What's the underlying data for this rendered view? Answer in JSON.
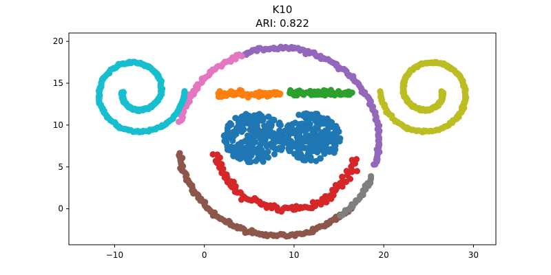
{
  "chart_data": {
    "type": "scatter",
    "title": "K10",
    "subtitle": "ARI: 0.822",
    "xlabel": "",
    "ylabel": "",
    "xlim": [
      -15.1,
      32.5
    ],
    "ylim": [
      -4.3,
      21.0
    ],
    "xticks": [
      -10,
      0,
      10,
      20,
      30
    ],
    "yticks": [
      0,
      5,
      10,
      15,
      20
    ],
    "grid": false,
    "legend": "none",
    "series": [
      {
        "color": "#1f77b4",
        "shape": "eyes-blobs",
        "blobs": [
          {
            "cx": 5.6,
            "cy": 8.5,
            "rx": 3.5,
            "ry": 3.0
          },
          {
            "cx": 12.0,
            "cy": 8.6,
            "rx": 3.2,
            "ry": 3.0
          }
        ]
      },
      {
        "color": "#ff7f0e",
        "shape": "bar",
        "x_range": [
          1.5,
          8.5
        ],
        "y": 13.7,
        "thickness": 0.7
      },
      {
        "color": "#2ca02c",
        "shape": "bar",
        "x_range": [
          9.5,
          16.5
        ],
        "y": 13.8,
        "thickness": 0.6
      },
      {
        "color": "#d62728",
        "shape": "arc",
        "center": [
          9.2,
          8.0
        ],
        "radius": 8.0,
        "angle_deg": [
          190,
          345
        ],
        "thickness": 1.0
      },
      {
        "color": "#9467bd",
        "shape": "arc",
        "center": [
          8.3,
          8.0
        ],
        "radius": 11.2,
        "angle_deg": [
          -15,
          110
        ],
        "thickness": 0.5
      },
      {
        "color": "#8c564b",
        "shape": "arc",
        "center": [
          8.3,
          8.0
        ],
        "radius": 11.2,
        "angle_deg": [
          187,
          315
        ],
        "thickness": 0.5
      },
      {
        "color": "#e377c2",
        "shape": "arc",
        "center": [
          8.3,
          8.0
        ],
        "radius": 11.2,
        "angle_deg": [
          112,
          168
        ],
        "thickness": 0.5
      },
      {
        "color": "#7f7f7f",
        "shape": "arc",
        "center": [
          8.3,
          8.0
        ],
        "radius": 11.2,
        "angle_deg": [
          -52,
          -22
        ],
        "thickness": 0.5
      },
      {
        "color": "#bcbd22",
        "shape": "spiral",
        "center": [
          25.0,
          14.0
        ],
        "start_radius": 1.5,
        "end_radius": 5.4,
        "start_deg": 0,
        "end_deg": 540,
        "direction": -1,
        "thickness": 0.5
      },
      {
        "color": "#17becf",
        "shape": "spiral",
        "center": [
          -7.6,
          14.0
        ],
        "start_radius": 1.5,
        "end_radius": 5.4,
        "start_deg": 180,
        "end_deg": 720,
        "direction": 1,
        "thickness": 0.5
      }
    ]
  }
}
